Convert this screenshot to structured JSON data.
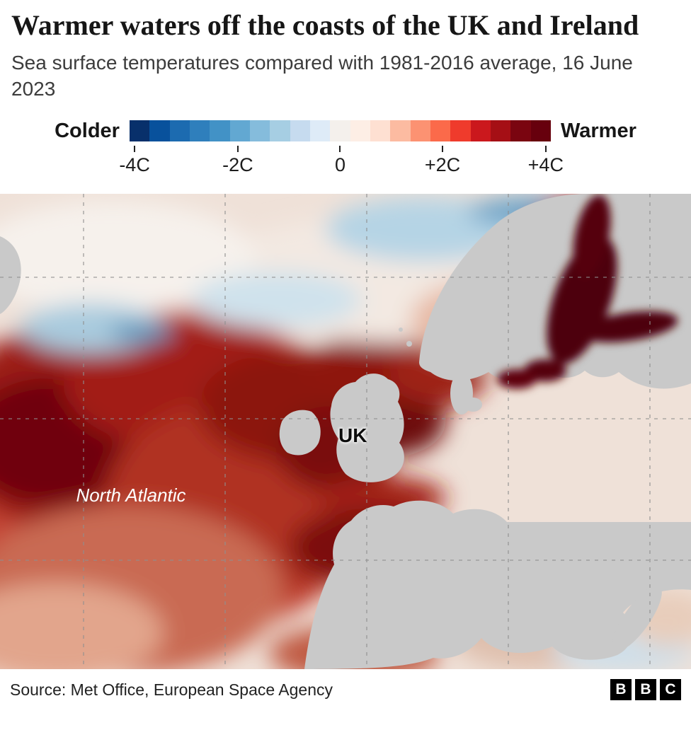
{
  "header": {
    "title": "Warmer waters off the coasts of the UK and Ireland",
    "subtitle": "Sea surface temperatures compared with 1981-2016 average, 16 June 2023"
  },
  "legend": {
    "left_label": "Colder",
    "right_label": "Warmer",
    "ticks": [
      "-4C",
      "-2C",
      "0",
      "+2C",
      "+4C"
    ],
    "colorbar_colors": [
      "#08306b",
      "#08519c",
      "#1c6bb0",
      "#2f7fbc",
      "#4292c6",
      "#62a8d2",
      "#85bcdc",
      "#a6cee3",
      "#c6dbef",
      "#deebf7",
      "#f4f0ec",
      "#fdeee5",
      "#fee0d2",
      "#fcbba1",
      "#fc9272",
      "#fb6a4a",
      "#ef3b2c",
      "#cb181d",
      "#a50f15",
      "#7a0510",
      "#67000d"
    ]
  },
  "map": {
    "labels": {
      "uk": "UK",
      "north_atlantic": "North Atlantic"
    },
    "land_color": "#c9c9c9"
  },
  "footer": {
    "source": "Source: Met Office, European Space Agency",
    "logo_letters": [
      "B",
      "B",
      "C"
    ]
  },
  "chart_data": {
    "type": "heatmap",
    "title": "Warmer waters off the coasts of the UK and Ireland",
    "subtitle": "Sea surface temperatures compared with 1981-2016 average, 16 June 2023",
    "date": "16 June 2023",
    "baseline_period": "1981-2016",
    "colorbar": {
      "label_left": "Colder",
      "label_right": "Warmer",
      "unit": "C",
      "min": -4,
      "max": 4,
      "tick_labels": [
        "-4C",
        "-2C",
        "0",
        "+2C",
        "+4C"
      ],
      "tick_values": [
        -4,
        -2,
        0,
        2,
        4
      ],
      "colors": [
        "#08306b",
        "#08519c",
        "#1c6bb0",
        "#2f7fbc",
        "#4292c6",
        "#62a8d2",
        "#85bcdc",
        "#a6cee3",
        "#c6dbef",
        "#deebf7",
        "#f4f0ec",
        "#fdeee5",
        "#fee0d2",
        "#fcbba1",
        "#fc9272",
        "#fb6a4a",
        "#ef3b2c",
        "#cb181d",
        "#a50f15",
        "#7a0510",
        "#67000d"
      ]
    },
    "map_extent": "North Atlantic and western Europe",
    "annotations": [
      "UK",
      "North Atlantic"
    ],
    "observed_anomalies_estimated": [
      {
        "region": "North Atlantic west and southwest of Ireland",
        "anomaly_c": 3.5
      },
      {
        "region": "Coastal waters around UK and Ireland",
        "anomaly_c": 3
      },
      {
        "region": "Baltic Sea",
        "anomaly_c": 4
      },
      {
        "region": "North Sea",
        "anomaly_c": 2.5
      },
      {
        "region": "Bay of Biscay",
        "anomaly_c": 3
      },
      {
        "region": "Norwegian Sea central band",
        "anomaly_c": 0
      },
      {
        "region": "Patches toward Arctic north of map centre",
        "anomaly_c": -1
      },
      {
        "region": "Western Mediterranean",
        "anomaly_c": 0.5
      }
    ],
    "legend_position": "top",
    "grid": "dashed graticule over map",
    "source": "Met Office, European Space Agency"
  }
}
